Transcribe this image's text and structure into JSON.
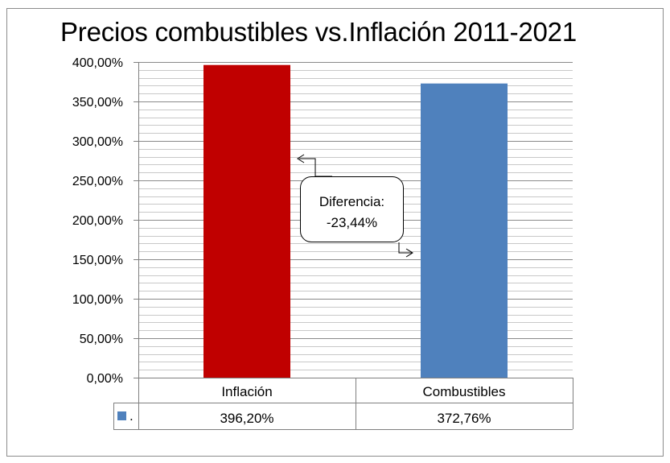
{
  "chart_data": {
    "type": "bar",
    "title": "Precios combustibles vs.Inflación 2011-2021",
    "categories": [
      "Inflación",
      "Combustibles"
    ],
    "values": [
      396.2,
      372.76
    ],
    "value_labels": [
      "396,20%",
      "372,76%"
    ],
    "bar_colors": [
      "#c00000",
      "#4f81bd"
    ],
    "ylim": [
      0,
      400
    ],
    "yticks": [
      0,
      50,
      100,
      150,
      200,
      250,
      300,
      350,
      400
    ],
    "ytick_labels": [
      "0,00%",
      "50,00%",
      "100,00%",
      "150,00%",
      "200,00%",
      "250,00%",
      "300,00%",
      "350,00%",
      "400,00%"
    ],
    "minor_gridlines": true,
    "legend": {
      "marker_color": "#4f81bd",
      "label": "."
    },
    "annotation": {
      "line1": "Diferencia:",
      "line2": "-23,44%"
    }
  }
}
